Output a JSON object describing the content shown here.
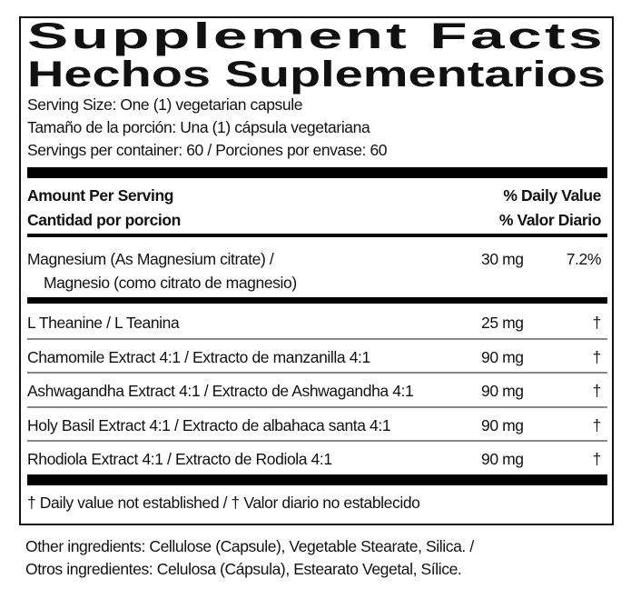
{
  "title_en": "Supplement Facts",
  "title_es": "Hechos Suplementarios",
  "serving_size": "Serving Size: One (1) vegetarian capsule",
  "serving_size_es": "Tamaño de la porción: Una (1) cápsula vegetariana",
  "servings_per_container": "Servings per container: 60 / Porciones por envase: 60",
  "header": {
    "amount_en": "Amount Per Serving",
    "amount_es": "Cantidad por porcion",
    "dv_en": "% Daily Value",
    "dv_es": "% Valor Diario"
  },
  "magnesium": {
    "name_line1": "Magnesium (As Magnesium citrate) /",
    "name_line2": "Magnesio (como citrato de magnesio)",
    "amount": "30 mg",
    "dv": "7.2%"
  },
  "ingredients": [
    {
      "name": "L Theanine / L Teanina",
      "amount": "25 mg",
      "dv": "†"
    },
    {
      "name": "Chamomile Extract 4:1 / Extracto de manzanilla 4:1",
      "amount": "90 mg",
      "dv": "†"
    },
    {
      "name": "Ashwagandha Extract 4:1 / Extracto de Ashwagandha 4:1",
      "amount": "90 mg",
      "dv": "†"
    },
    {
      "name": "Holy Basil Extract 4:1 / Extracto de albahaca santa 4:1",
      "amount": "90 mg",
      "dv": "†"
    },
    {
      "name": "Rhodiola Extract 4:1 / Extracto de Rodiola 4:1",
      "amount": "90 mg",
      "dv": "†"
    }
  ],
  "footnote": "† Daily value not established  / † Valor diario no establecido",
  "other_ingredients_en": "Other ingredients: Cellulose (Capsule), Vegetable Stearate, Silica. /",
  "other_ingredients_es": "Otros ingredientes: Celulosa (Cápsula), Estearato Vegetal, Sílice."
}
